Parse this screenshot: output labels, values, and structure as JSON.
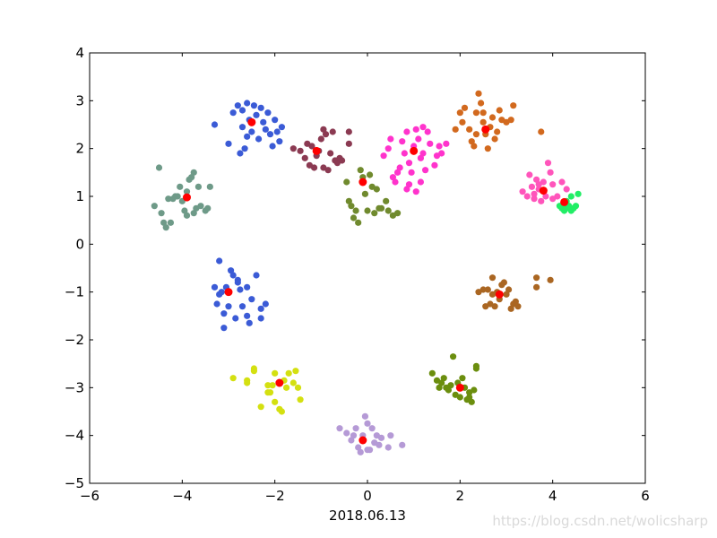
{
  "chart_data": {
    "type": "scatter",
    "xlabel": "2018.06.13",
    "xlim": [
      -6,
      6
    ],
    "ylim": [
      -5,
      4
    ],
    "xticks": [
      "−6",
      "−4",
      "−2",
      "0",
      "2",
      "4",
      "6"
    ],
    "yticks": [
      "4",
      "3",
      "2",
      "1",
      "0",
      "−1",
      "−2",
      "−3",
      "−4",
      "−5"
    ],
    "grid": false,
    "legend": "none",
    "centroid_color": "#ff0000",
    "clusters": [
      {
        "color": "#3b5bd6",
        "center": [
          -2.5,
          2.55
        ],
        "points": [
          [
            -3.3,
            2.5
          ],
          [
            -3.0,
            2.1
          ],
          [
            -2.9,
            2.75
          ],
          [
            -2.8,
            2.9
          ],
          [
            -2.7,
            2.8
          ],
          [
            -2.7,
            2.45
          ],
          [
            -2.65,
            2.0
          ],
          [
            -2.6,
            2.25
          ],
          [
            -2.55,
            2.6
          ],
          [
            -2.5,
            2.35
          ],
          [
            -2.45,
            2.9
          ],
          [
            -2.4,
            2.7
          ],
          [
            -2.35,
            2.2
          ],
          [
            -2.3,
            2.85
          ],
          [
            -2.25,
            2.55
          ],
          [
            -2.2,
            2.4
          ],
          [
            -2.15,
            2.75
          ],
          [
            -2.1,
            2.3
          ],
          [
            -2.05,
            2.05
          ],
          [
            -2.0,
            2.6
          ],
          [
            -1.95,
            2.35
          ],
          [
            -1.9,
            2.15
          ],
          [
            -1.85,
            2.45
          ],
          [
            -2.6,
            2.95
          ],
          [
            -2.75,
            1.9
          ]
        ]
      },
      {
        "color": "#8b3a52",
        "center": [
          -1.1,
          1.95
        ],
        "points": [
          [
            -1.6,
            2.0
          ],
          [
            -1.45,
            1.95
          ],
          [
            -1.35,
            1.8
          ],
          [
            -1.3,
            2.1
          ],
          [
            -1.2,
            2.05
          ],
          [
            -1.15,
            1.6
          ],
          [
            -1.1,
            1.85
          ],
          [
            -1.05,
            1.95
          ],
          [
            -1.0,
            2.2
          ],
          [
            -0.95,
            2.4
          ],
          [
            -0.9,
            2.3
          ],
          [
            -0.85,
            1.55
          ],
          [
            -0.8,
            1.9
          ],
          [
            -0.75,
            2.35
          ],
          [
            -0.7,
            1.75
          ],
          [
            -0.65,
            1.7
          ],
          [
            -0.6,
            1.8
          ],
          [
            -0.55,
            1.75
          ],
          [
            -0.4,
            2.35
          ],
          [
            -0.4,
            2.1
          ],
          [
            -1.25,
            1.65
          ],
          [
            -0.95,
            1.6
          ]
        ]
      },
      {
        "color": "#ff33cc",
        "center": [
          1.0,
          1.95
        ],
        "points": [
          [
            0.35,
            1.85
          ],
          [
            0.5,
            2.2
          ],
          [
            0.55,
            1.4
          ],
          [
            0.6,
            1.3
          ],
          [
            0.7,
            1.6
          ],
          [
            0.75,
            2.15
          ],
          [
            0.8,
            1.9
          ],
          [
            0.85,
            2.35
          ],
          [
            0.9,
            1.7
          ],
          [
            0.95,
            1.5
          ],
          [
            1.0,
            2.05
          ],
          [
            1.05,
            2.4
          ],
          [
            1.1,
            2.2
          ],
          [
            1.15,
            1.8
          ],
          [
            1.2,
            2.45
          ],
          [
            1.25,
            1.55
          ],
          [
            1.3,
            2.35
          ],
          [
            1.35,
            2.1
          ],
          [
            1.45,
            1.65
          ],
          [
            1.5,
            1.85
          ],
          [
            1.55,
            2.05
          ],
          [
            1.6,
            1.9
          ],
          [
            0.65,
            1.5
          ],
          [
            1.05,
            1.1
          ],
          [
            1.15,
            1.3
          ],
          [
            1.2,
            1.9
          ],
          [
            0.9,
            1.25
          ],
          [
            0.85,
            1.15
          ],
          [
            1.7,
            2.1
          ],
          [
            0.45,
            2.0
          ]
        ]
      },
      {
        "color": "#d2691e",
        "center": [
          2.55,
          2.4
        ],
        "points": [
          [
            1.9,
            2.4
          ],
          [
            2.0,
            2.75
          ],
          [
            2.05,
            2.55
          ],
          [
            2.1,
            2.85
          ],
          [
            2.2,
            2.4
          ],
          [
            2.25,
            2.15
          ],
          [
            2.3,
            2.05
          ],
          [
            2.35,
            2.75
          ],
          [
            2.4,
            3.15
          ],
          [
            2.45,
            2.95
          ],
          [
            2.5,
            2.55
          ],
          [
            2.55,
            2.3
          ],
          [
            2.6,
            2.0
          ],
          [
            2.65,
            2.45
          ],
          [
            2.7,
            2.65
          ],
          [
            2.75,
            2.2
          ],
          [
            2.8,
            2.35
          ],
          [
            2.85,
            2.8
          ],
          [
            2.9,
            2.6
          ],
          [
            3.0,
            2.55
          ],
          [
            3.1,
            2.6
          ],
          [
            3.15,
            2.9
          ],
          [
            3.75,
            2.35
          ],
          [
            2.5,
            2.75
          ],
          [
            2.35,
            2.3
          ]
        ]
      },
      {
        "color": "#6e9a88",
        "center": [
          -3.9,
          0.98
        ],
        "points": [
          [
            -4.6,
            0.8
          ],
          [
            -4.5,
            1.6
          ],
          [
            -4.45,
            0.65
          ],
          [
            -4.4,
            0.45
          ],
          [
            -4.35,
            0.35
          ],
          [
            -4.3,
            0.95
          ],
          [
            -4.25,
            0.45
          ],
          [
            -4.2,
            0.95
          ],
          [
            -4.15,
            1.0
          ],
          [
            -4.05,
            1.2
          ],
          [
            -4.0,
            0.9
          ],
          [
            -3.95,
            0.7
          ],
          [
            -3.9,
            1.1
          ],
          [
            -3.85,
            1.35
          ],
          [
            -3.8,
            1.4
          ],
          [
            -3.75,
            1.5
          ],
          [
            -3.7,
            0.75
          ],
          [
            -3.65,
            1.2
          ],
          [
            -3.6,
            0.8
          ],
          [
            -3.5,
            0.7
          ],
          [
            -3.4,
            1.2
          ],
          [
            -3.45,
            0.75
          ],
          [
            -3.9,
            0.6
          ],
          [
            -3.75,
            0.65
          ],
          [
            -4.1,
            1.0
          ]
        ]
      },
      {
        "color": "#708a2e",
        "center": [
          -0.1,
          1.3
        ],
        "points": [
          [
            -0.45,
            1.3
          ],
          [
            -0.4,
            0.9
          ],
          [
            -0.35,
            0.8
          ],
          [
            -0.25,
            0.7
          ],
          [
            -0.2,
            0.45
          ],
          [
            -0.15,
            1.55
          ],
          [
            -0.1,
            1.4
          ],
          [
            -0.05,
            1.05
          ],
          [
            0.0,
            0.7
          ],
          [
            0.05,
            1.45
          ],
          [
            0.1,
            1.2
          ],
          [
            0.15,
            0.65
          ],
          [
            0.25,
            0.75
          ],
          [
            0.3,
            0.75
          ],
          [
            0.4,
            0.9
          ],
          [
            0.45,
            0.7
          ],
          [
            0.55,
            0.6
          ],
          [
            0.65,
            0.65
          ],
          [
            -0.3,
            0.55
          ],
          [
            0.2,
            1.15
          ]
        ]
      },
      {
        "color": "#ff55bb",
        "center": [
          3.8,
          1.12
        ],
        "points": [
          [
            3.35,
            1.1
          ],
          [
            3.45,
            1.0
          ],
          [
            3.5,
            1.45
          ],
          [
            3.55,
            1.2
          ],
          [
            3.6,
            0.95
          ],
          [
            3.65,
            1.35
          ],
          [
            3.7,
            1.15
          ],
          [
            3.75,
            0.9
          ],
          [
            3.8,
            1.3
          ],
          [
            3.85,
            1.0
          ],
          [
            3.9,
            1.7
          ],
          [
            3.95,
            1.5
          ],
          [
            4.0,
            1.25
          ],
          [
            4.1,
            1.0
          ],
          [
            4.2,
            1.3
          ],
          [
            4.3,
            1.15
          ],
          [
            3.6,
            1.05
          ],
          [
            3.7,
            1.25
          ],
          [
            4.0,
            0.95
          ]
        ]
      },
      {
        "color": "#22ee66",
        "center": [
          4.25,
          0.88
        ],
        "points": [
          [
            4.15,
            0.8
          ],
          [
            4.2,
            0.75
          ],
          [
            4.25,
            0.7
          ],
          [
            4.3,
            0.9
          ],
          [
            4.35,
            0.8
          ],
          [
            4.4,
            1.0
          ],
          [
            4.45,
            0.75
          ],
          [
            4.5,
            0.8
          ],
          [
            4.55,
            1.05
          ],
          [
            4.4,
            0.7
          ],
          [
            4.3,
            0.75
          ]
        ]
      },
      {
        "color": "#3b5bd6",
        "center": [
          -3.0,
          -1.0
        ],
        "points": [
          [
            -3.3,
            -0.9
          ],
          [
            -3.25,
            -1.25
          ],
          [
            -3.2,
            -0.35
          ],
          [
            -3.2,
            -1.05
          ],
          [
            -3.15,
            -1.0
          ],
          [
            -3.1,
            -1.45
          ],
          [
            -3.1,
            -1.75
          ],
          [
            -3.05,
            -0.9
          ],
          [
            -3.0,
            -1.3
          ],
          [
            -2.95,
            -0.55
          ],
          [
            -2.9,
            -0.65
          ],
          [
            -2.85,
            -1.55
          ],
          [
            -2.8,
            -0.75
          ],
          [
            -2.75,
            -0.95
          ],
          [
            -2.7,
            -1.3
          ],
          [
            -2.6,
            -1.5
          ],
          [
            -2.55,
            -1.65
          ],
          [
            -2.6,
            -0.9
          ],
          [
            -2.5,
            -1.15
          ],
          [
            -2.4,
            -0.65
          ],
          [
            -2.3,
            -1.35
          ],
          [
            -2.2,
            -1.25
          ],
          [
            -2.3,
            -1.55
          ],
          [
            -2.8,
            -0.8
          ]
        ]
      },
      {
        "color": "#aa6622",
        "center": [
          2.85,
          -1.05
        ],
        "points": [
          [
            2.4,
            -1.0
          ],
          [
            2.55,
            -1.3
          ],
          [
            2.6,
            -0.95
          ],
          [
            2.65,
            -1.25
          ],
          [
            2.7,
            -0.7
          ],
          [
            2.75,
            -1.3
          ],
          [
            2.8,
            -1.0
          ],
          [
            2.85,
            -1.15
          ],
          [
            2.9,
            -0.85
          ],
          [
            2.95,
            -0.8
          ],
          [
            3.0,
            -1.05
          ],
          [
            3.05,
            -0.95
          ],
          [
            3.1,
            -1.35
          ],
          [
            3.15,
            -1.25
          ],
          [
            3.2,
            -1.2
          ],
          [
            3.25,
            -1.3
          ],
          [
            3.65,
            -0.9
          ],
          [
            3.65,
            -0.7
          ],
          [
            3.95,
            -0.75
          ],
          [
            2.5,
            -0.95
          ],
          [
            2.7,
            -1.05
          ]
        ]
      },
      {
        "color": "#d4e010",
        "center": [
          -1.9,
          -2.9
        ],
        "points": [
          [
            -2.9,
            -2.8
          ],
          [
            -2.6,
            -2.85
          ],
          [
            -2.6,
            -2.9
          ],
          [
            -2.45,
            -2.6
          ],
          [
            -2.45,
            -2.65
          ],
          [
            -2.3,
            -3.4
          ],
          [
            -2.15,
            -2.95
          ],
          [
            -2.1,
            -3.1
          ],
          [
            -2.05,
            -2.95
          ],
          [
            -2.0,
            -3.3
          ],
          [
            -2.0,
            -2.7
          ],
          [
            -1.9,
            -3.45
          ],
          [
            -1.85,
            -3.5
          ],
          [
            -1.8,
            -2.85
          ],
          [
            -1.7,
            -2.7
          ],
          [
            -1.6,
            -2.9
          ],
          [
            -1.55,
            -2.65
          ],
          [
            -1.5,
            -3.0
          ],
          [
            -1.45,
            -3.25
          ],
          [
            -1.75,
            -3.0
          ],
          [
            -2.15,
            -3.1
          ]
        ]
      },
      {
        "color": "#6b8e0e",
        "center": [
          2.0,
          -3.0
        ],
        "points": [
          [
            1.4,
            -2.7
          ],
          [
            1.5,
            -2.85
          ],
          [
            1.6,
            -2.9
          ],
          [
            1.65,
            -2.8
          ],
          [
            1.7,
            -3.0
          ],
          [
            1.75,
            -3.05
          ],
          [
            1.8,
            -2.95
          ],
          [
            1.85,
            -2.35
          ],
          [
            1.9,
            -3.15
          ],
          [
            1.95,
            -2.9
          ],
          [
            2.0,
            -3.2
          ],
          [
            2.05,
            -2.8
          ],
          [
            2.1,
            -3.0
          ],
          [
            2.15,
            -3.25
          ],
          [
            2.2,
            -3.1
          ],
          [
            2.25,
            -3.3
          ],
          [
            2.3,
            -3.05
          ],
          [
            2.35,
            -2.6
          ],
          [
            2.35,
            -2.55
          ],
          [
            1.55,
            -3.0
          ],
          [
            2.2,
            -3.2
          ]
        ]
      },
      {
        "color": "#b59ad6",
        "center": [
          -0.1,
          -4.1
        ],
        "points": [
          [
            -0.6,
            -3.85
          ],
          [
            -0.45,
            -3.95
          ],
          [
            -0.35,
            -4.1
          ],
          [
            -0.25,
            -3.85
          ],
          [
            -0.2,
            -4.25
          ],
          [
            -0.15,
            -4.35
          ],
          [
            -0.1,
            -4.0
          ],
          [
            -0.05,
            -3.6
          ],
          [
            0.0,
            -3.75
          ],
          [
            0.05,
            -4.3
          ],
          [
            0.1,
            -3.85
          ],
          [
            0.15,
            -4.15
          ],
          [
            0.2,
            -4.0
          ],
          [
            0.25,
            -4.2
          ],
          [
            0.3,
            -4.05
          ],
          [
            0.45,
            -4.25
          ],
          [
            0.5,
            -4.0
          ],
          [
            0.75,
            -4.2
          ],
          [
            -0.3,
            -4.0
          ],
          [
            0.0,
            -4.3
          ]
        ]
      }
    ]
  },
  "watermark": "https://blog.csdn.net/wolicsharp"
}
